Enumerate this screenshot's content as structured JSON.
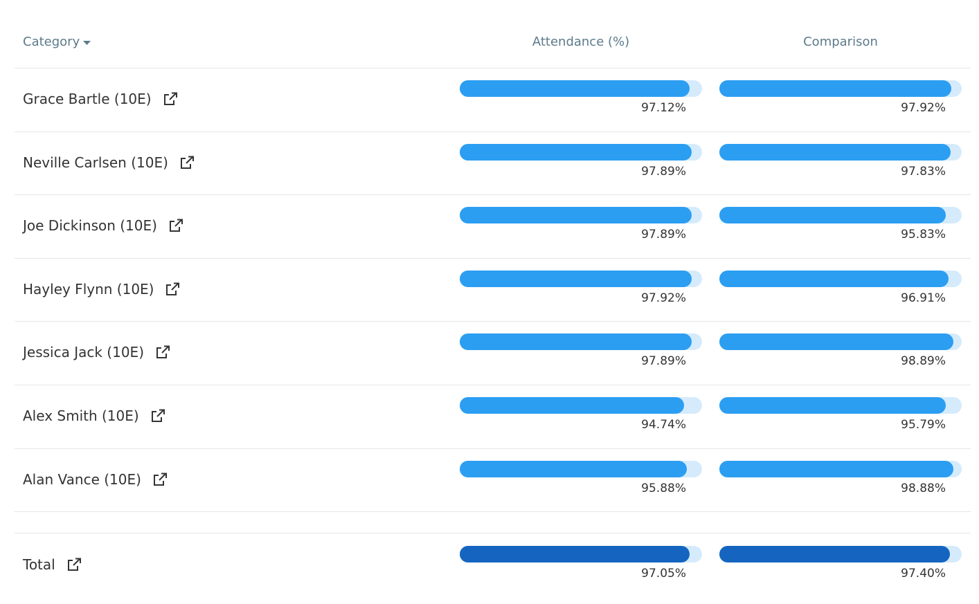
{
  "table": {
    "headers": [
      "Category",
      "Attendance (%)",
      "Comparison"
    ],
    "scale": [
      0,
      100
    ],
    "bar_color": "#2b9ef2",
    "total_color": "#1565c0",
    "track_color": "#d5ebfc",
    "rows": [
      {
        "name": "Grace Bartle (10E)",
        "attendance": {
          "value": 97.12,
          "label": "97.12%"
        },
        "comparison": {
          "value": 97.92,
          "label": "97.92%"
        }
      },
      {
        "name": "Neville Carlsen (10E)",
        "attendance": {
          "value": 97.89,
          "label": "97.89%"
        },
        "comparison": {
          "value": 97.83,
          "label": "97.83%"
        }
      },
      {
        "name": "Joe Dickinson (10E)",
        "attendance": {
          "value": 97.89,
          "label": "97.89%"
        },
        "comparison": {
          "value": 95.83,
          "label": "95.83%"
        }
      },
      {
        "name": "Hayley Flynn (10E)",
        "attendance": {
          "value": 97.92,
          "label": "97.92%"
        },
        "comparison": {
          "value": 96.91,
          "label": "96.91%"
        }
      },
      {
        "name": "Jessica Jack (10E)",
        "attendance": {
          "value": 97.89,
          "label": "97.89%"
        },
        "comparison": {
          "value": 98.89,
          "label": "98.89%"
        }
      },
      {
        "name": "Alex Smith (10E)",
        "attendance": {
          "value": 94.74,
          "label": "94.74%"
        },
        "comparison": {
          "value": 95.79,
          "label": "95.79%"
        }
      },
      {
        "name": "Alan Vance (10E)",
        "attendance": {
          "value": 95.88,
          "label": "95.88%"
        },
        "comparison": {
          "value": 98.88,
          "label": "98.88%"
        }
      }
    ],
    "total": {
      "name": "Total",
      "attendance": {
        "value": 97.05,
        "label": "97.05%"
      },
      "comparison": {
        "value": 97.4,
        "label": "97.40%"
      }
    }
  }
}
